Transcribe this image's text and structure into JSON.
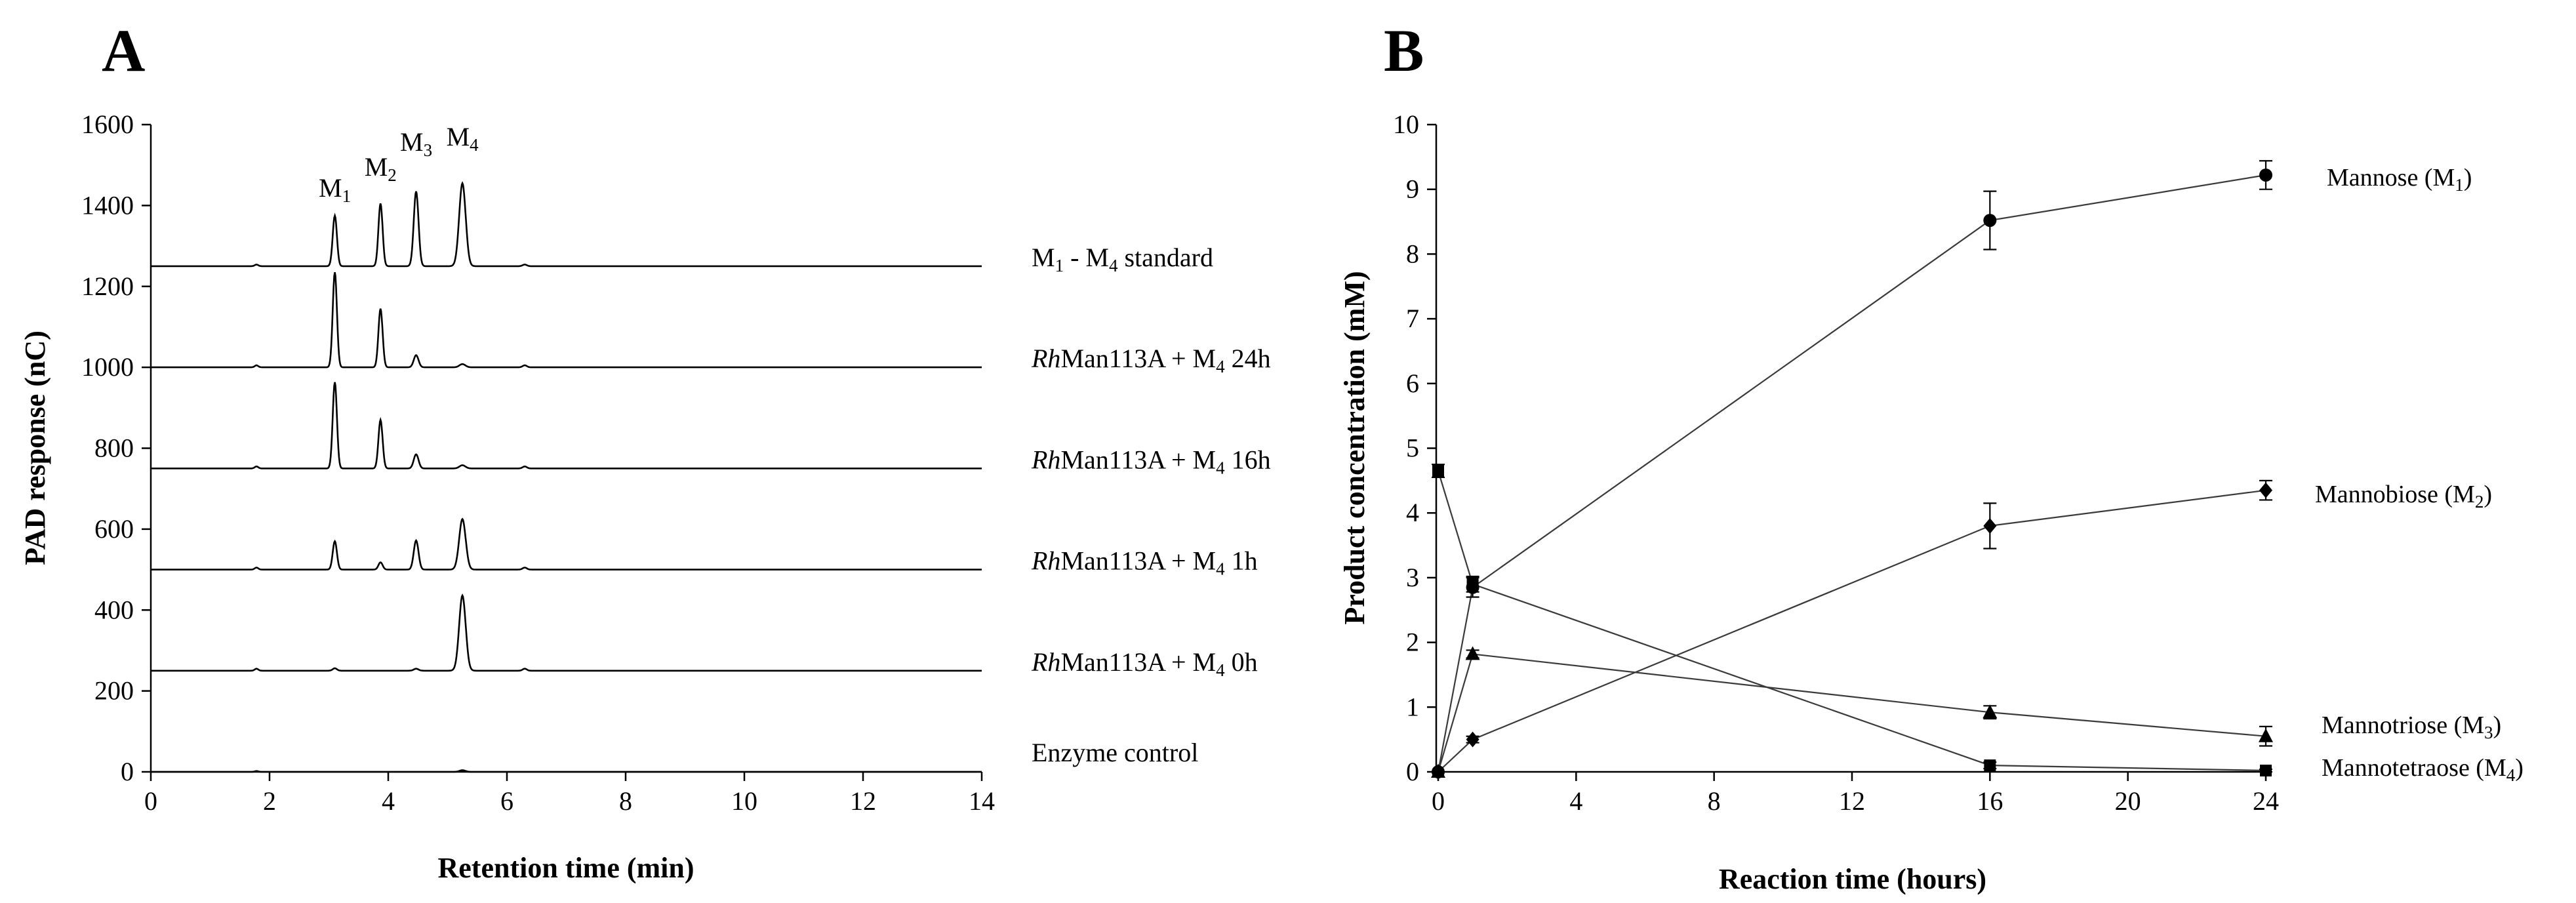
{
  "chart_data": [
    {
      "panel": "A",
      "type": "line",
      "xlabel": "Retention time (min)",
      "ylabel": "PAD response  (nC)",
      "xlim": [
        0,
        14
      ],
      "ylim": [
        0,
        1600
      ],
      "xticks": [
        0,
        2,
        4,
        6,
        8,
        10,
        12,
        14
      ],
      "yticks": [
        0,
        200,
        400,
        600,
        800,
        1000,
        1200,
        1400,
        1600
      ],
      "peak_labels": [
        {
          "main": "M",
          "sub": "1",
          "rt": 3.1
        },
        {
          "main": "M",
          "sub": "2",
          "rt": 3.87
        },
        {
          "main": "M",
          "sub": "3",
          "rt": 4.47
        },
        {
          "main": "M",
          "sub": "4",
          "rt": 5.25
        }
      ],
      "series": [
        {
          "name": "Enzyme control",
          "label_parts": [
            {
              "t": "Enzyme control"
            }
          ],
          "baseline": 0,
          "peaks": [
            [
              1.78,
              2,
              0.03
            ],
            [
              5.25,
              4,
              0.05
            ]
          ]
        },
        {
          "name": "RhMan113A + M4 0h",
          "label_parts": [
            {
              "t": "Rh",
              "i": true
            },
            {
              "t": "Man113A + M"
            },
            {
              "t": "4",
              "sub": true
            },
            {
              "t": " 0h"
            }
          ],
          "baseline": 250,
          "peaks": [
            [
              1.78,
              5,
              0.03
            ],
            [
              3.1,
              6,
              0.035
            ],
            [
              4.47,
              5,
              0.04
            ],
            [
              5.25,
              186,
              0.055
            ],
            [
              6.3,
              5,
              0.035
            ]
          ]
        },
        {
          "name": "RhMan113A + M4 1h",
          "label_parts": [
            {
              "t": "Rh",
              "i": true
            },
            {
              "t": "Man113A + M"
            },
            {
              "t": "4",
              "sub": true
            },
            {
              "t": " 1h"
            }
          ],
          "baseline": 500,
          "peaks": [
            [
              1.78,
              5,
              0.03
            ],
            [
              3.1,
              70,
              0.035
            ],
            [
              3.87,
              18,
              0.035
            ],
            [
              4.47,
              72,
              0.04
            ],
            [
              5.25,
              125,
              0.055
            ],
            [
              6.3,
              5,
              0.035
            ]
          ]
        },
        {
          "name": "RhMan113A + M4 16h",
          "label_parts": [
            {
              "t": "Rh",
              "i": true
            },
            {
              "t": "Man113A + M"
            },
            {
              "t": "4",
              "sub": true
            },
            {
              "t": " 16h"
            }
          ],
          "baseline": 750,
          "peaks": [
            [
              1.78,
              5,
              0.03
            ],
            [
              3.1,
              213,
              0.035
            ],
            [
              3.87,
              120,
              0.035
            ],
            [
              4.47,
              35,
              0.04
            ],
            [
              5.25,
              8,
              0.05
            ],
            [
              6.3,
              5,
              0.035
            ]
          ]
        },
        {
          "name": "RhMan113A + M4 24h",
          "label_parts": [
            {
              "t": "Rh",
              "i": true
            },
            {
              "t": "Man113A + M"
            },
            {
              "t": "4",
              "sub": true
            },
            {
              "t": " 24h"
            }
          ],
          "baseline": 1000,
          "peaks": [
            [
              1.78,
              5,
              0.03
            ],
            [
              3.1,
              235,
              0.035
            ],
            [
              3.87,
              145,
              0.035
            ],
            [
              4.47,
              30,
              0.04
            ],
            [
              5.25,
              8,
              0.05
            ],
            [
              6.3,
              5,
              0.035
            ]
          ]
        },
        {
          "name": "M1 - M4 standard",
          "label_parts": [
            {
              "t": "M"
            },
            {
              "t": "1",
              "sub": true
            },
            {
              "t": " - M"
            },
            {
              "t": "4",
              "sub": true
            },
            {
              "t": " standard"
            }
          ],
          "baseline": 1250,
          "peaks": [
            [
              1.78,
              4,
              0.03
            ],
            [
              3.1,
              125,
              0.035
            ],
            [
              3.87,
              155,
              0.035
            ],
            [
              4.47,
              185,
              0.04
            ],
            [
              5.25,
              205,
              0.055
            ],
            [
              6.3,
              4,
              0.035
            ]
          ]
        }
      ]
    },
    {
      "panel": "B",
      "type": "line",
      "xlabel": "Reaction time (hours)",
      "ylabel": "Product concentration (mM)",
      "xlim": [
        0,
        24
      ],
      "ylim": [
        0,
        10
      ],
      "xticks": [
        0,
        4,
        8,
        12,
        16,
        20,
        24
      ],
      "yticks": [
        0,
        1,
        2,
        3,
        4,
        5,
        6,
        7,
        8,
        9,
        10
      ],
      "series": [
        {
          "name": "Mannose (M1)",
          "label_parts": [
            {
              "t": "Mannose (M"
            },
            {
              "t": "1",
              "sub": true
            },
            {
              "t": ")"
            }
          ],
          "marker": "circle",
          "x": [
            0,
            1,
            16,
            24
          ],
          "y": [
            0,
            2.85,
            8.52,
            9.22
          ],
          "err": [
            0,
            0.15,
            0.45,
            0.22
          ]
        },
        {
          "name": "Mannobiose (M2)",
          "label_parts": [
            {
              "t": "Mannobiose (M"
            },
            {
              "t": "2",
              "sub": true
            },
            {
              "t": ")"
            }
          ],
          "marker": "diamond",
          "x": [
            0,
            1,
            16,
            24
          ],
          "y": [
            0,
            0.5,
            3.8,
            4.35
          ],
          "err": [
            0,
            0.05,
            0.35,
            0.15
          ]
        },
        {
          "name": "Mannotriose (M3)",
          "label_parts": [
            {
              "t": "Mannotriose (M"
            },
            {
              "t": "3",
              "sub": true
            },
            {
              "t": ")"
            }
          ],
          "marker": "triangle",
          "x": [
            0,
            1,
            16,
            24
          ],
          "y": [
            0,
            1.82,
            0.92,
            0.55
          ],
          "err": [
            0,
            0.06,
            0.1,
            0.15
          ]
        },
        {
          "name": "Mannotetraose (M4)",
          "label_parts": [
            {
              "t": "Mannotetraose (M"
            },
            {
              "t": "4",
              "sub": true
            },
            {
              "t": ")"
            }
          ],
          "marker": "square",
          "x": [
            0,
            1,
            16,
            24
          ],
          "y": [
            4.65,
            2.9,
            0.1,
            0.02
          ],
          "err": [
            0.1,
            0.12,
            0.05,
            0.02
          ]
        }
      ]
    }
  ],
  "panels": {
    "a_letter": "A",
    "b_letter": "B"
  }
}
